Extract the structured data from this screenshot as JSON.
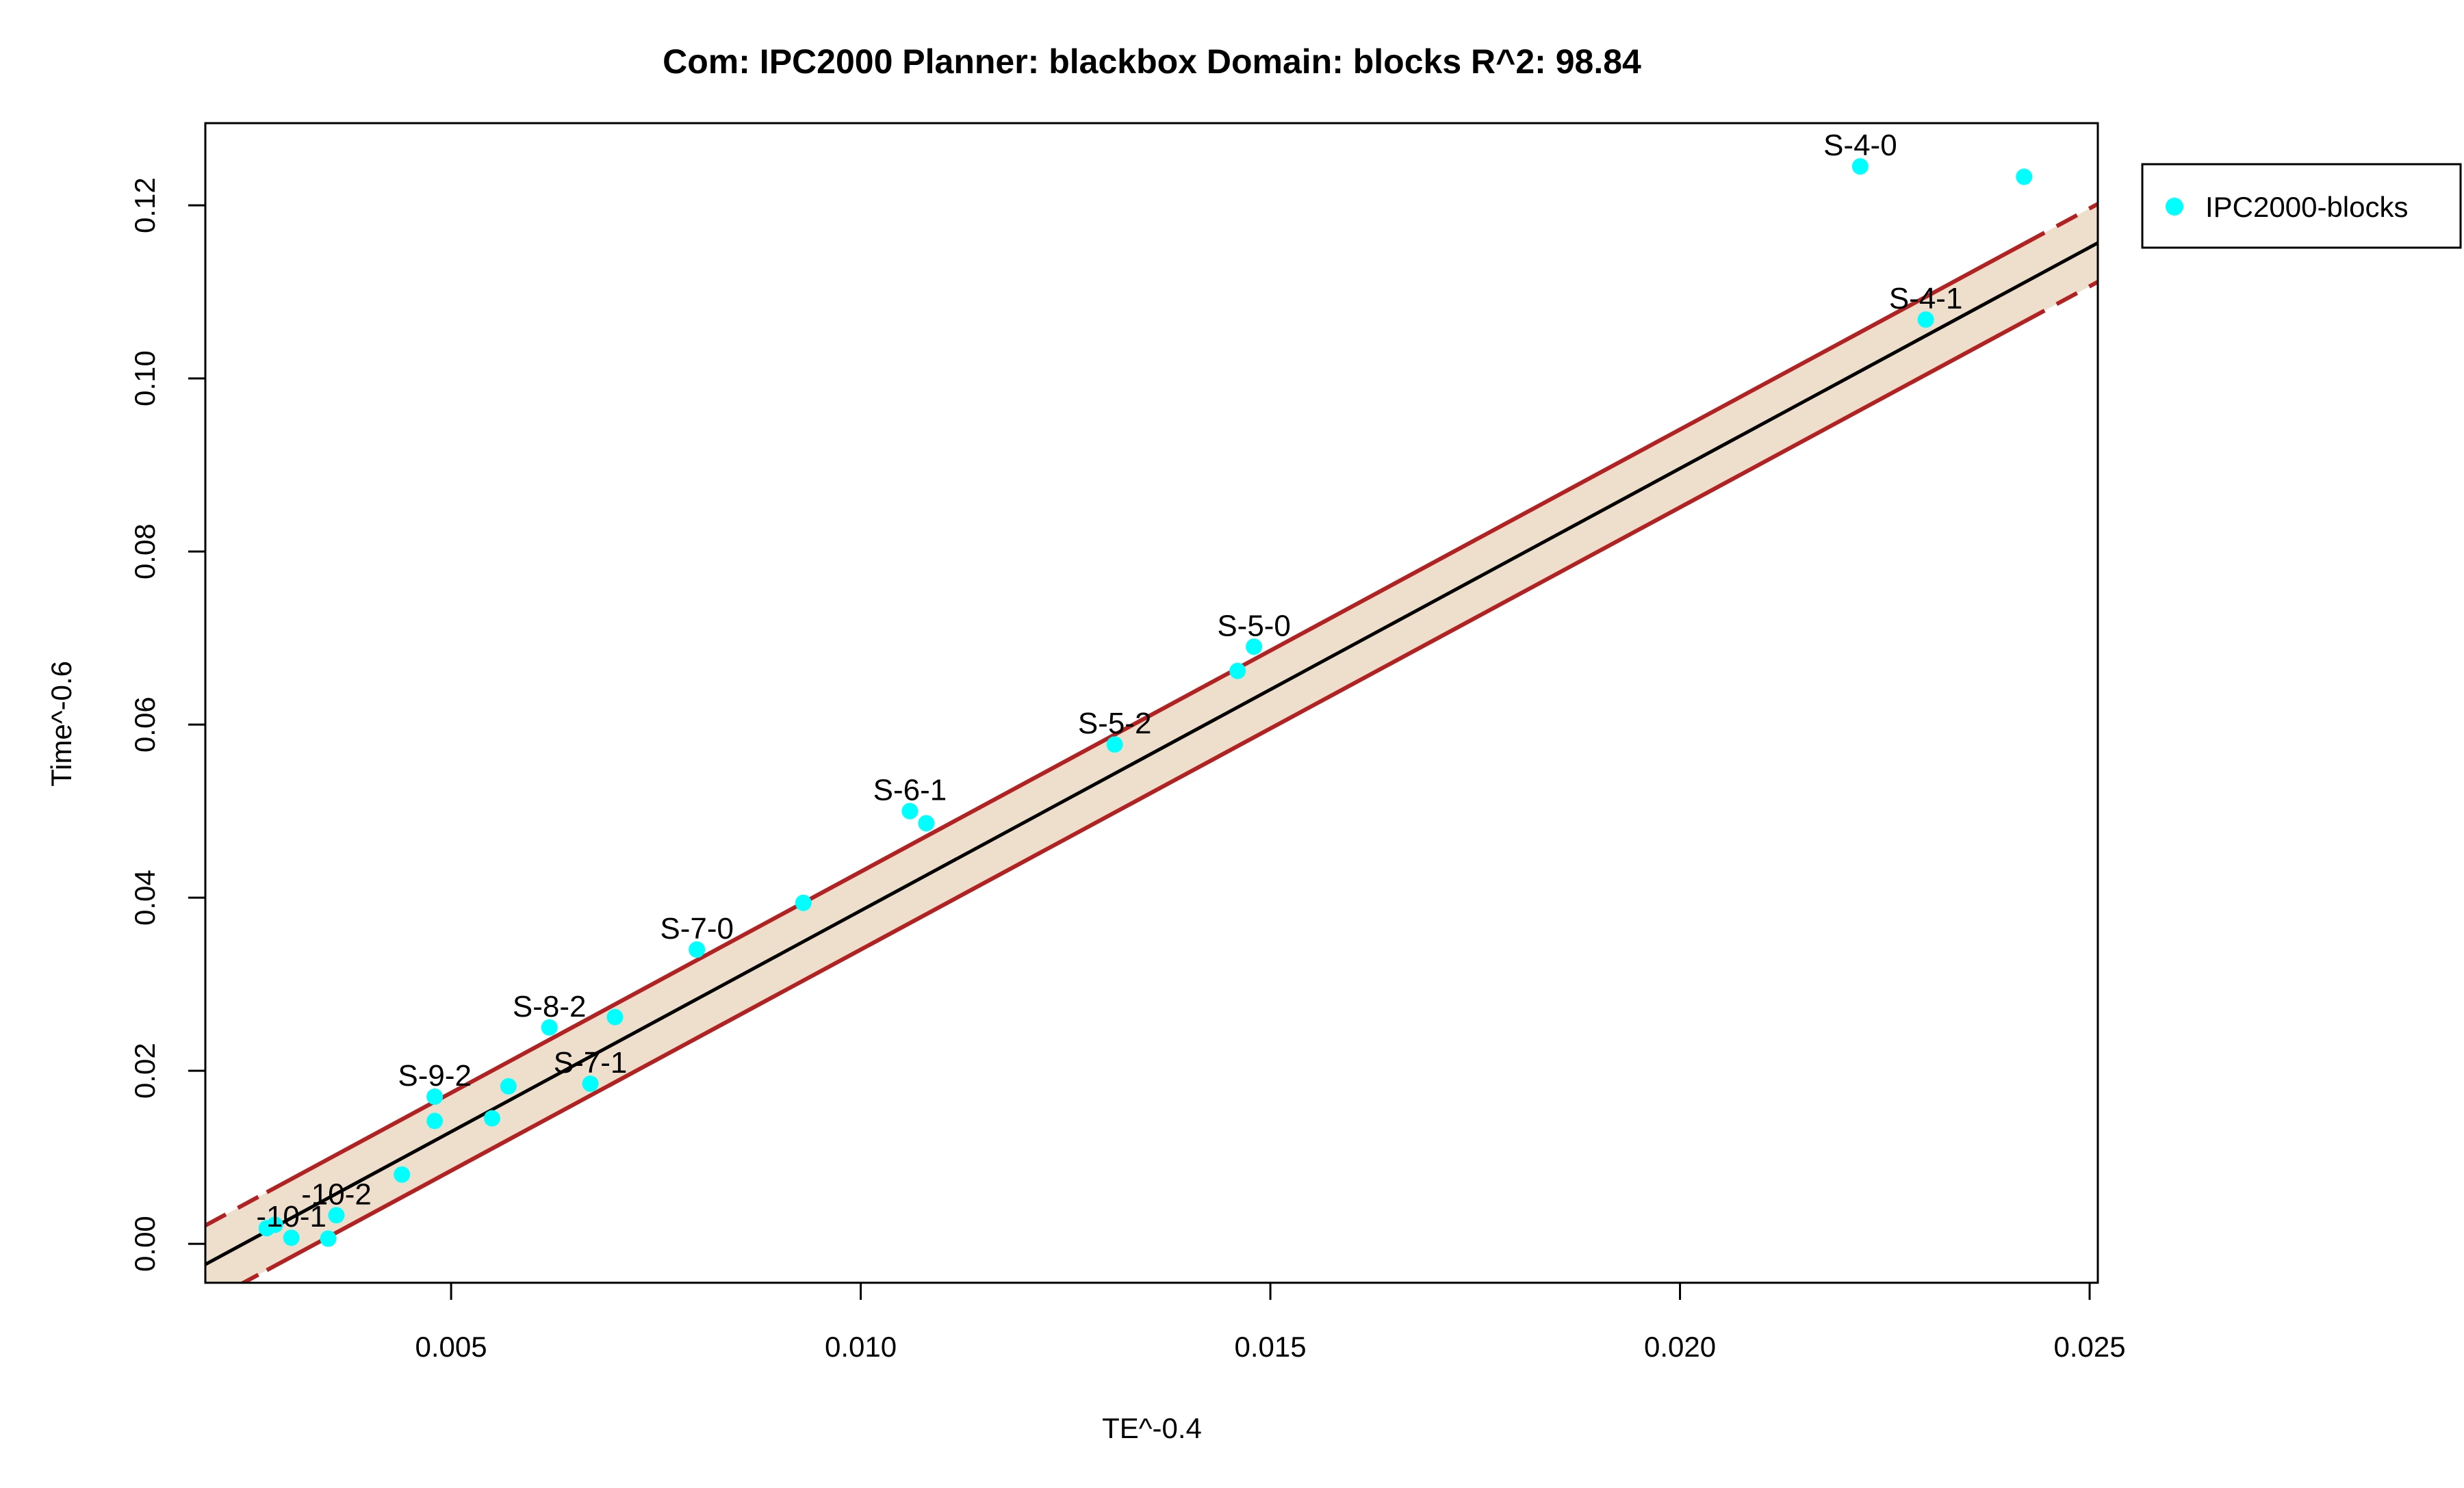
{
  "chart_data": {
    "type": "scatter",
    "title": "Com: IPC2000 Planner: blackbox Domain: blocks R^2: 98.84",
    "xlabel": "TE^-0.4",
    "ylabel": "Time^-0.6",
    "xlim": [
      0.002,
      0.0251
    ],
    "ylim": [
      -0.0045,
      0.1295
    ],
    "xticks": [
      0.005,
      0.01,
      0.015,
      0.02,
      0.025
    ],
    "xtick_labels": [
      "0.005",
      "0.010",
      "0.015",
      "0.020",
      "0.025"
    ],
    "yticks": [
      0.0,
      0.02,
      0.04,
      0.06,
      0.08,
      0.1,
      0.12
    ],
    "ytick_labels": [
      "0.00",
      "0.02",
      "0.04",
      "0.06",
      "0.08",
      "0.10",
      "0.12"
    ],
    "legend": {
      "position": "top-right, outside plot",
      "entries": [
        "IPC2000-blocks"
      ]
    },
    "colors": {
      "points": "#00ffff",
      "fit_line": "#000000",
      "band_fill": "#eedfcc",
      "band_border": "#b22222",
      "frame": "#000000"
    },
    "fit": {
      "slope": 5.11,
      "intercept": -0.0126
    },
    "band_halfwidth": 0.0045,
    "series": [
      {
        "name": "IPC2000-blocks",
        "points": [
          {
            "x": 0.00275,
            "y": 0.0018,
            "label": ""
          },
          {
            "x": 0.00285,
            "y": 0.0022,
            "label": ""
          },
          {
            "x": 0.00305,
            "y": 0.0007,
            "label": "-10-1"
          },
          {
            "x": 0.0035,
            "y": 0.0006,
            "label": ""
          },
          {
            "x": 0.0036,
            "y": 0.0033,
            "label": "-10-2"
          },
          {
            "x": 0.0044,
            "y": 0.008,
            "label": ""
          },
          {
            "x": 0.0048,
            "y": 0.017,
            "label": "S-9-2"
          },
          {
            "x": 0.0048,
            "y": 0.0142,
            "label": ""
          },
          {
            "x": 0.0055,
            "y": 0.0145,
            "label": ""
          },
          {
            "x": 0.0057,
            "y": 0.0182,
            "label": ""
          },
          {
            "x": 0.0062,
            "y": 0.025,
            "label": "S-8-2"
          },
          {
            "x": 0.0067,
            "y": 0.0185,
            "label": "S-7-1"
          },
          {
            "x": 0.007,
            "y": 0.0262,
            "label": ""
          },
          {
            "x": 0.008,
            "y": 0.034,
            "label": "S-7-0"
          },
          {
            "x": 0.0093,
            "y": 0.0394,
            "label": ""
          },
          {
            "x": 0.0106,
            "y": 0.05,
            "label": "S-6-1"
          },
          {
            "x": 0.0108,
            "y": 0.0486,
            "label": ""
          },
          {
            "x": 0.0131,
            "y": 0.0577,
            "label": "S-5-2"
          },
          {
            "x": 0.0146,
            "y": 0.0662,
            "label": ""
          },
          {
            "x": 0.0148,
            "y": 0.069,
            "label": "S-5-0"
          },
          {
            "x": 0.0222,
            "y": 0.1245,
            "label": "S-4-0"
          },
          {
            "x": 0.023,
            "y": 0.1068,
            "label": "S-4-1"
          },
          {
            "x": 0.0242,
            "y": 0.1233,
            "label": ""
          }
        ]
      }
    ]
  }
}
